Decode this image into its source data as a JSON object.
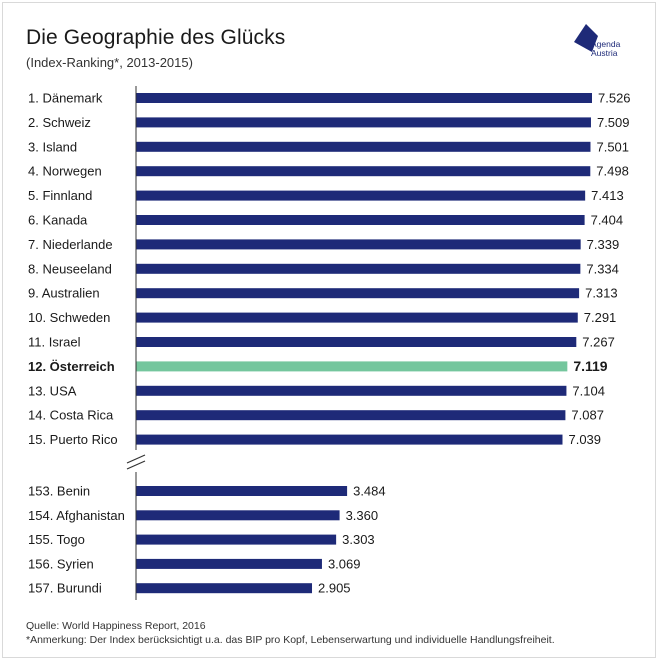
{
  "header": {
    "title": "Die Geographie des Glücks",
    "subtitle": "(Index-Ranking*, 2013-2015)"
  },
  "logo": {
    "line1": "Agenda",
    "line2": "Austria",
    "icon": "agenda-austria-diamond-icon"
  },
  "colors": {
    "bar": "#1e2a78",
    "highlight": "#74c69d",
    "text": "#1a1a1a"
  },
  "chart_data": {
    "type": "bar",
    "orientation": "horizontal",
    "axis_break": "after 15. Puerto Rico",
    "top_group": [
      {
        "label": "1. Dänemark",
        "value": 7.526,
        "value_label": "7.526"
      },
      {
        "label": "2. Schweiz",
        "value": 7.509,
        "value_label": "7.509"
      },
      {
        "label": "3. Island",
        "value": 7.501,
        "value_label": "7.501"
      },
      {
        "label": "4. Norwegen",
        "value": 7.498,
        "value_label": "7.498"
      },
      {
        "label": "5. Finnland",
        "value": 7.413,
        "value_label": "7.413"
      },
      {
        "label": "6. Kanada",
        "value": 7.404,
        "value_label": "7.404"
      },
      {
        "label": "7. Niederlande",
        "value": 7.339,
        "value_label": "7.339"
      },
      {
        "label": "8. Neuseeland",
        "value": 7.334,
        "value_label": "7.334"
      },
      {
        "label": "9. Australien",
        "value": 7.313,
        "value_label": "7.313"
      },
      {
        "label": "10. Schweden",
        "value": 7.291,
        "value_label": "7.291"
      },
      {
        "label": "11. Israel",
        "value": 7.267,
        "value_label": "7.267"
      },
      {
        "label": "12. Österreich",
        "value": 7.119,
        "value_label": "7.119",
        "highlight": true
      },
      {
        "label": "13. USA",
        "value": 7.104,
        "value_label": "7.104"
      },
      {
        "label": "14. Costa Rica",
        "value": 7.087,
        "value_label": "7.087"
      },
      {
        "label": "15. Puerto Rico",
        "value": 7.039,
        "value_label": "7.039"
      }
    ],
    "bottom_group": [
      {
        "label": "153. Benin",
        "value": 3.484,
        "value_label": "3.484"
      },
      {
        "label": "154. Afghanistan",
        "value": 3.36,
        "value_label": "3.360"
      },
      {
        "label": "155. Togo",
        "value": 3.303,
        "value_label": "3.303"
      },
      {
        "label": "156. Syrien",
        "value": 3.069,
        "value_label": "3.069"
      },
      {
        "label": "157. Burundi",
        "value": 2.905,
        "value_label": "2.905"
      }
    ]
  },
  "footer": {
    "source": "Quelle: World Happiness Report, 2016",
    "note": "*Anmerkung: Der Index berücksichtigt u.a. das BIP pro Kopf, Lebenserwartung und individuelle Handlungsfreiheit."
  }
}
